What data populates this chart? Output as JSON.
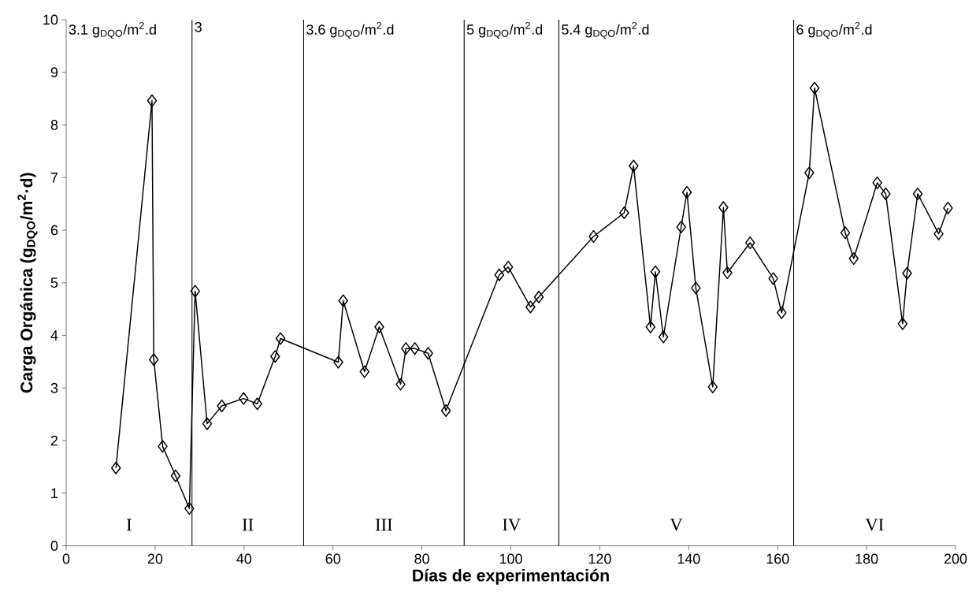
{
  "chart_data": {
    "type": "line",
    "xlabel": "Días de experimentación",
    "ylabel": "Carga Orgánica (g$_{DQO}$/m$^{2}$·d)",
    "x": [
      11.2,
      19.3,
      19.7,
      21.7,
      24.6,
      27.7,
      29.0,
      31.7,
      35.0,
      39.9,
      43.0,
      47.0,
      48.2,
      61.2,
      62.3,
      67.1,
      70.4,
      75.2,
      76.4,
      78.4,
      81.4,
      85.4,
      97.4,
      99.4,
      104.4,
      106.3,
      118.6,
      125.5,
      127.6,
      131.4,
      132.5,
      134.3,
      138.3,
      139.6,
      141.6,
      145.4,
      147.8,
      148.7,
      153.8,
      159.0,
      160.9,
      167.1,
      168.3,
      175.2,
      177.1,
      182.4,
      184.3,
      188.1,
      189.1,
      191.5,
      196.2,
      198.3
    ],
    "values": [
      1.48,
      8.46,
      3.54,
      1.89,
      1.33,
      0.71,
      4.84,
      2.32,
      2.66,
      2.8,
      2.7,
      3.6,
      3.94,
      3.49,
      4.66,
      3.31,
      4.16,
      3.07,
      3.75,
      3.75,
      3.66,
      2.57,
      5.15,
      5.3,
      4.54,
      4.73,
      5.88,
      6.33,
      7.22,
      4.16,
      5.21,
      3.97,
      6.06,
      6.72,
      4.9,
      3.02,
      6.43,
      5.19,
      5.76,
      5.08,
      4.43,
      7.09,
      8.7,
      5.95,
      5.46,
      6.9,
      6.69,
      4.22,
      5.18,
      6.69,
      5.93,
      6.42
    ],
    "color": "#000000",
    "marker": "diamond",
    "line_style": "solid",
    "xlim": [
      0,
      200
    ],
    "xticks": [
      0,
      20,
      40,
      60,
      80,
      100,
      120,
      140,
      160,
      180,
      200
    ],
    "ylim": [
      0,
      10
    ],
    "yticks": [
      0,
      1,
      2,
      3,
      4,
      5,
      6,
      7,
      8,
      9,
      10
    ],
    "ref_lines": [
      {
        "axis": "x",
        "value": 28.3
      },
      {
        "axis": "x",
        "value": 53.4
      },
      {
        "axis": "x",
        "value": 89.5
      },
      {
        "axis": "x",
        "value": 110.8
      },
      {
        "axis": "x",
        "value": 163.6
      }
    ],
    "annotations": [
      "3.1 g$_{DQO}$/m$^{2}$.d",
      "3",
      "3.6 g$_{DQO}$/m$^{2}$.d",
      "5 g$_{DQO}$/m$^{2}$.d",
      "5.4 g$_{DQO}$/m$^{2}$.d",
      "6 g$_{DQO}$/m$^{2}$.d",
      "I",
      "II",
      "III",
      "IV",
      "V",
      "VI"
    ]
  }
}
